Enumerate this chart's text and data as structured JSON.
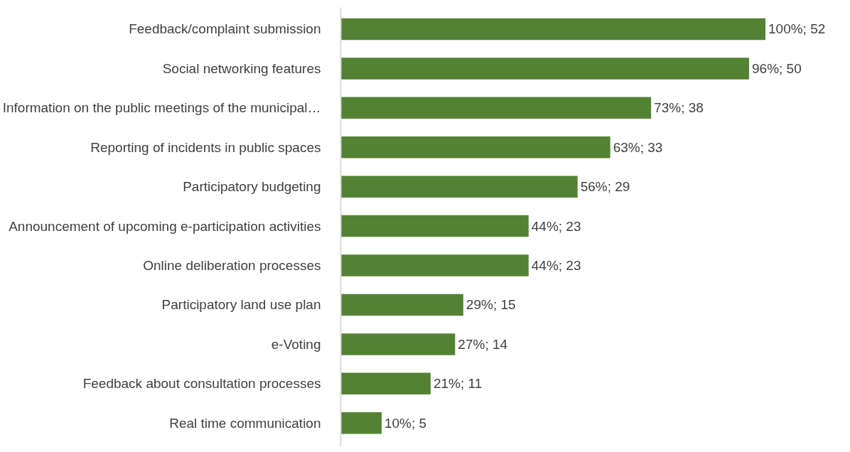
{
  "chart_data": {
    "type": "bar",
    "orientation": "horizontal",
    "categories": [
      "Feedback/complaint submission",
      "Social networking features",
      "Information on the public meetings of the municipal…",
      "Reporting of incidents in public spaces",
      "Participatory budgeting",
      "Announcement of upcoming e-participation activities",
      "Online deliberation processes",
      "Participatory land use plan",
      "e-Voting",
      "Feedback about consultation processes",
      "Real time communication"
    ],
    "values": [
      52,
      50,
      38,
      33,
      29,
      23,
      23,
      15,
      14,
      11,
      5
    ],
    "value_labels": [
      "100%; 52",
      "96%; 50",
      "73%; 38",
      "63%; 33",
      "56%; 29",
      "44%; 23",
      "44%; 23",
      "29%; 15",
      "27%; 14",
      "21%; 11",
      "10%; 5"
    ],
    "color": "#548235"
  }
}
